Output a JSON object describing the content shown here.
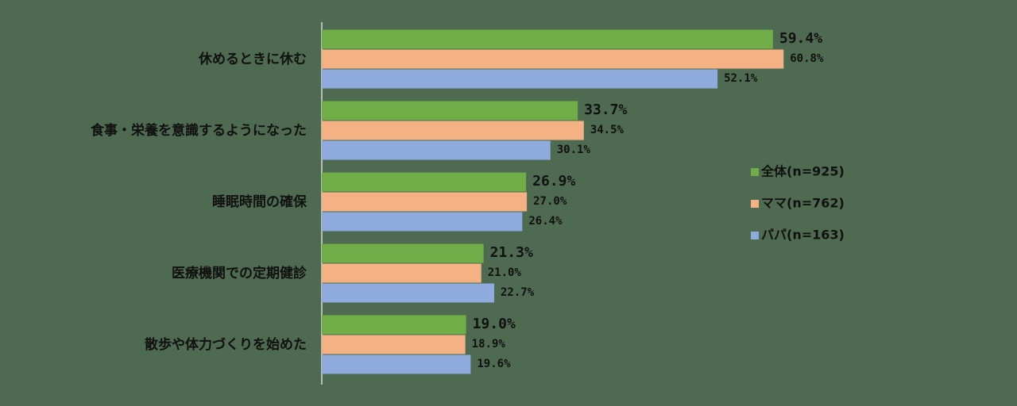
{
  "chart_data": {
    "type": "bar",
    "orientation": "horizontal",
    "categories": [
      "休めるときに休む",
      "食事・栄養を意識するようになった",
      "睡眠時間の確保",
      "医療機関での定期健診",
      "散歩や体力づくりを始めた"
    ],
    "series": [
      {
        "name": "全体(n=925)",
        "color": "#70ad47",
        "values": [
          59.4,
          33.7,
          26.9,
          21.3,
          19.0
        ],
        "value_labels": [
          "59.4%",
          "33.7%",
          "26.9%",
          "21.3%",
          "19.0%"
        ]
      },
      {
        "name": "ママ(n=762)",
        "color": "#f4b183",
        "values": [
          60.8,
          34.5,
          27.0,
          21.0,
          18.9
        ],
        "value_labels": [
          "60.8%",
          "34.5%",
          "27.0%",
          "21.0%",
          "18.9%"
        ]
      },
      {
        "name": "パパ(n=163)",
        "color": "#8faadc",
        "values": [
          52.1,
          30.1,
          26.4,
          22.7,
          19.6
        ],
        "value_labels": [
          "52.1%",
          "30.1%",
          "26.4%",
          "22.7%",
          "19.6%"
        ]
      }
    ]
  }
}
